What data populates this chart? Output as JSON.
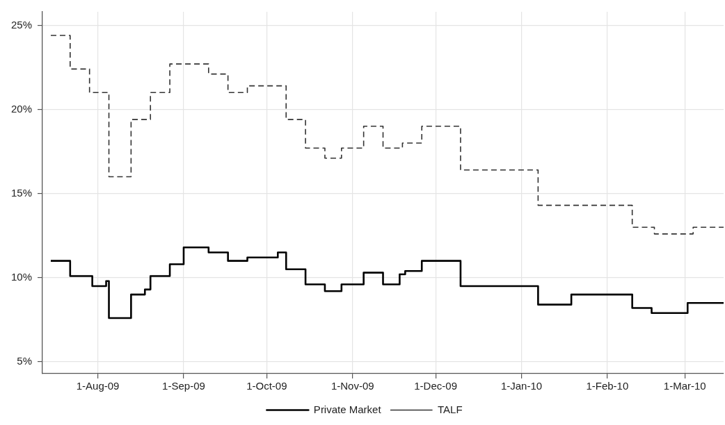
{
  "chart_data": {
    "type": "step",
    "xlim": [
      "2009-07-12",
      "2010-03-15"
    ],
    "xticks": [
      {
        "value": "2009-08-01",
        "label": "1-Aug-09"
      },
      {
        "value": "2009-09-01",
        "label": "1-Sep-09"
      },
      {
        "value": "2009-10-01",
        "label": "1-Oct-09"
      },
      {
        "value": "2009-11-01",
        "label": "1-Nov-09"
      },
      {
        "value": "2009-12-01",
        "label": "1-Dec-09"
      },
      {
        "value": "2010-01-01",
        "label": "1-Jan-10"
      },
      {
        "value": "2010-02-01",
        "label": "1-Feb-10"
      },
      {
        "value": "2010-03-01",
        "label": "1-Mar-10"
      }
    ],
    "ylim": [
      4.3,
      25.8
    ],
    "yticks": [
      {
        "value": 5,
        "label": "5%"
      },
      {
        "value": 10,
        "label": "10%"
      },
      {
        "value": 15,
        "label": "15%"
      },
      {
        "value": 20,
        "label": "20%"
      },
      {
        "value": 25,
        "label": "25%"
      }
    ],
    "grid": true,
    "legend": "bottom",
    "marker": "none",
    "series": [
      {
        "name": "Private Market",
        "color": "#000000",
        "line_style": "solid",
        "x": [
          "2009-07-15",
          "2009-07-22",
          "2009-07-30",
          "2009-08-04",
          "2009-08-05",
          "2009-08-13",
          "2009-08-18",
          "2009-08-20",
          "2009-08-27",
          "2009-09-01",
          "2009-09-10",
          "2009-09-17",
          "2009-09-24",
          "2009-10-05",
          "2009-10-08",
          "2009-10-15",
          "2009-10-22",
          "2009-10-28",
          "2009-11-05",
          "2009-11-12",
          "2009-11-18",
          "2009-11-20",
          "2009-11-26",
          "2009-12-10",
          "2010-01-07",
          "2010-01-19",
          "2010-02-10",
          "2010-02-17",
          "2010-03-02",
          "2010-03-15"
        ],
        "values": [
          11.0,
          10.1,
          9.5,
          9.8,
          7.6,
          9.0,
          9.3,
          10.1,
          10.8,
          11.8,
          11.5,
          11.0,
          11.2,
          11.5,
          10.5,
          9.6,
          9.2,
          9.6,
          10.3,
          9.6,
          10.2,
          10.4,
          11.0,
          9.5,
          8.4,
          9.0,
          8.2,
          7.9,
          8.5,
          8.5
        ]
      },
      {
        "name": "TALF",
        "color": "#333333",
        "line_style": "dashed",
        "x": [
          "2009-07-15",
          "2009-07-22",
          "2009-07-29",
          "2009-08-05",
          "2009-08-13",
          "2009-08-20",
          "2009-08-27",
          "2009-09-10",
          "2009-09-17",
          "2009-09-24",
          "2009-10-08",
          "2009-10-15",
          "2009-10-22",
          "2009-10-28",
          "2009-11-05",
          "2009-11-12",
          "2009-11-19",
          "2009-11-26",
          "2009-12-10",
          "2010-01-07",
          "2010-02-10",
          "2010-02-18",
          "2010-03-04",
          "2010-03-15"
        ],
        "values": [
          24.4,
          22.4,
          21.0,
          16.0,
          19.4,
          21.0,
          22.7,
          22.1,
          21.0,
          21.4,
          19.4,
          17.7,
          17.1,
          17.7,
          19.0,
          17.7,
          18.0,
          19.0,
          16.4,
          14.3,
          13.0,
          12.6,
          13.0,
          13.0
        ]
      }
    ]
  }
}
